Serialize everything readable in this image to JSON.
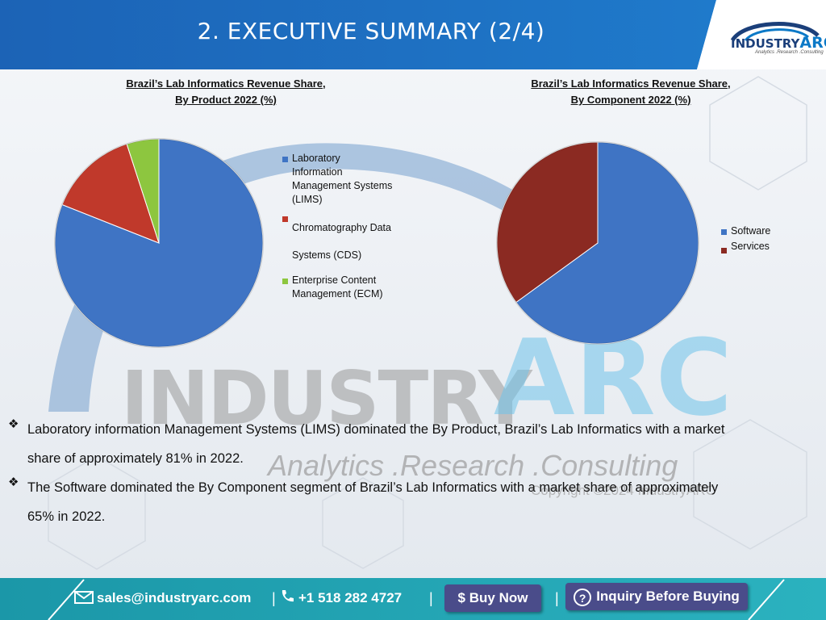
{
  "header": {
    "title": "2. EXECUTIVE SUMMARY (2/4)",
    "logo_main": "INDUSTRY",
    "logo_arc": "ARC",
    "logo_tagline": "Analytics .Research .Consulting"
  },
  "colors": {
    "header_blue": "#1f6fc0",
    "footer_teal": "#24a3b3",
    "lims_blue": "#3f74c4",
    "cds_red": "#c0392b",
    "ecm_green": "#8dc63f",
    "software_blue": "#3f74c4",
    "services_darkred": "#8b2a22"
  },
  "chart_data": [
    {
      "type": "pie",
      "title_line1": "Brazil’s Lab Informatics Revenue Share,",
      "title_line2": "By Product 2022 (%)",
      "categories": [
        "Laboratory Information Management Systems (LIMS)",
        "Chromatography Data Systems (CDS)",
        "Enterprise Content Management (ECM)"
      ],
      "values": [
        81,
        14,
        5
      ],
      "legend": {
        "placement": "right",
        "items": [
          {
            "lines": [
              "Laboratory",
              "Information",
              "Management Systems",
              "(LIMS)"
            ]
          },
          {
            "lines": [
              "Chromatography Data",
              "",
              "Systems (CDS)"
            ]
          },
          {
            "lines": [
              "Enterprise Content",
              "Management (ECM)"
            ]
          }
        ]
      }
    },
    {
      "type": "pie",
      "title_line1": "Brazil’s Lab Informatics Revenue Share,",
      "title_line2": "By Component 2022 (%)",
      "categories": [
        "Software",
        "Services"
      ],
      "values": [
        65,
        35
      ],
      "legend": {
        "placement": "right",
        "items": [
          {
            "lines": [
              "Software"
            ]
          },
          {
            "lines": [
              "Services"
            ]
          }
        ]
      }
    }
  ],
  "watermark": {
    "industry": "INDUSTRY",
    "arc": "ARC",
    "tagline": "Analytics .Research .Consulting",
    "copyright": "Copyright ©2024 IndustryARC"
  },
  "bullets": [
    {
      "line1": "Laboratory information Management Systems (LIMS) dominated the By Product, Brazil’s Lab Informatics with a market",
      "line2": "share of approximately 81% in 2022."
    },
    {
      "line1": "The Software dominated the By Component segment of Brazil’s Lab Informatics with a market share of approximately",
      "line2": "65% in 2022."
    }
  ],
  "footer": {
    "email": "sales@industryarc.com",
    "phone": "+1 518 282 4727",
    "buy_now": "Buy Now",
    "inquiry": "Inquiry Before Buying",
    "separator": "|"
  }
}
